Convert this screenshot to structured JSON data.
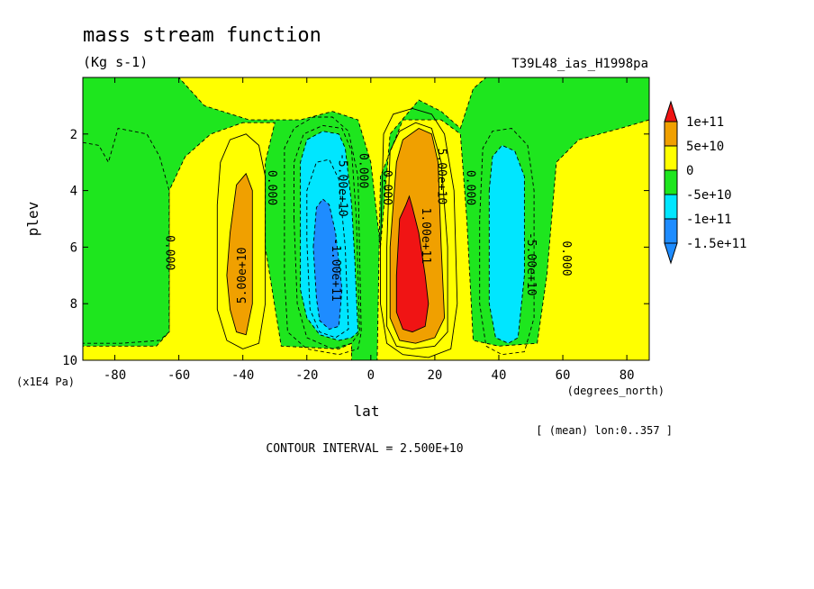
{
  "chart_data": {
    "type": "heatmap",
    "title": "mass stream function",
    "units": "(Kg s-1)",
    "experiment": "T39L48_ias_H1998pa",
    "xlabel": "lat",
    "ylabel": "plev",
    "x_unit": "(degrees_north)",
    "y_unit": "(x1E4 Pa)",
    "x_range": [
      -90,
      87
    ],
    "y_range": [
      10,
      0
    ],
    "x_ticks": [
      -80,
      -60,
      -40,
      -20,
      0,
      20,
      40,
      60,
      80
    ],
    "x_tick_labels": [
      "-80",
      "-60",
      "-40",
      "-20",
      "0",
      "20",
      "40",
      "60",
      "80"
    ],
    "y_ticks": [
      2,
      4,
      6,
      8,
      10
    ],
    "y_tick_labels": [
      "2",
      "4",
      "6",
      "8",
      "10"
    ],
    "mean_note": "[ (mean) lon:0..357 ]",
    "contour_interval": "CONTOUR INTERVAL = 2.500E+10",
    "colorbar": {
      "bands": [
        {
          "label": "",
          "color": "#1e8cff"
        },
        {
          "label": "-1.5e+11",
          "color": "#1e8cff"
        },
        {
          "label": "-1e+11",
          "color": "#00e6ff"
        },
        {
          "label": "-5e+10",
          "color": "#1ee61e"
        },
        {
          "label": "0",
          "color": "#ffff00"
        },
        {
          "label": "5e+10",
          "color": "#f0a000"
        },
        {
          "label": "1e+11",
          "color": "#f01414"
        }
      ],
      "tick_labels": [
        "1e+11",
        "5e+10",
        "0",
        "-5e+10",
        "-1e+11",
        "-1.5e+11"
      ]
    },
    "contour_labels": [
      {
        "text": "0.000",
        "lat": -63,
        "plev": 6.2,
        "rotate": 90
      },
      {
        "text": "0.000",
        "lat": -31,
        "plev": 3.9,
        "rotate": 90
      },
      {
        "text": "0.000",
        "lat": -2.5,
        "plev": 3.3,
        "rotate": 90
      },
      {
        "text": "0.000",
        "lat": 5,
        "plev": 3.9,
        "rotate": 90
      },
      {
        "text": "0.000",
        "lat": 31,
        "plev": 3.9,
        "rotate": 90
      },
      {
        "text": "0.000",
        "lat": 61,
        "plev": 6.4,
        "rotate": 90
      },
      {
        "text": "5.00e+10",
        "lat": -40,
        "plev": 7.0,
        "rotate": -90
      },
      {
        "text": "-5.00e+10",
        "lat": -9,
        "plev": 3.8,
        "rotate": 90
      },
      {
        "text": "-1.00e+11",
        "lat": -11,
        "plev": 6.8,
        "rotate": 90
      },
      {
        "text": "5.00e+10",
        "lat": 22,
        "plev": 3.5,
        "rotate": 90
      },
      {
        "text": "1.00e+11",
        "lat": 17,
        "plev": 5.6,
        "rotate": 90
      },
      {
        "text": "-5.00e+10",
        "lat": 50,
        "plev": 6.6,
        "rotate": 90
      }
    ],
    "regions": [
      {
        "level": "neg1",
        "color": "#1ee61e",
        "pts": [
          [
            -90,
            0
          ],
          [
            -60,
            0
          ],
          [
            -52,
            1.0
          ],
          [
            -38,
            1.5
          ],
          [
            -22,
            1.5
          ],
          [
            -12,
            1.2
          ],
          [
            -4,
            1.5
          ],
          [
            0,
            3.0
          ],
          [
            3,
            6.0
          ],
          [
            6,
            2.0
          ],
          [
            15,
            0.8
          ],
          [
            22,
            1.2
          ],
          [
            28,
            1.8
          ],
          [
            32,
            0.4
          ],
          [
            36,
            0
          ],
          [
            87,
            0
          ],
          [
            87,
            1.5
          ],
          [
            78,
            1.8
          ],
          [
            65,
            2.2
          ],
          [
            58,
            3.0
          ],
          [
            55,
            7.0
          ],
          [
            52,
            9.4
          ],
          [
            40,
            9.5
          ],
          [
            32,
            9.3
          ],
          [
            30,
            5.0
          ],
          [
            28,
            2.0
          ],
          [
            22,
            1.5
          ],
          [
            10,
            1.5
          ],
          [
            3,
            3.5
          ],
          [
            2,
            10
          ],
          [
            -6,
            10
          ],
          [
            -6,
            9.4
          ],
          [
            -10,
            9.6
          ],
          [
            -28,
            9.5
          ],
          [
            -33,
            6.0
          ],
          [
            -33,
            3.0
          ],
          [
            -30,
            1.6
          ],
          [
            -40,
            1.6
          ],
          [
            -50,
            2.0
          ],
          [
            -58,
            2.8
          ],
          [
            -63,
            4.0
          ],
          [
            -63,
            9.0
          ],
          [
            -67,
            9.5
          ],
          [
            -90,
            9.5
          ]
        ]
      },
      {
        "level": "neg1",
        "color": "#1ee61e",
        "pts": [
          [
            -90,
            2.3
          ],
          [
            -85,
            2.4
          ],
          [
            -82,
            3.0
          ],
          [
            -79,
            1.8
          ],
          [
            -70,
            2.0
          ],
          [
            -66,
            2.8
          ],
          [
            -63,
            4.0
          ],
          [
            -63,
            9.0
          ],
          [
            -66,
            9.3
          ],
          [
            -78,
            9.4
          ],
          [
            -90,
            9.4
          ]
        ]
      },
      {
        "level": "neg2",
        "color": "#00e6ff",
        "pts": [
          [
            -22,
            5.5
          ],
          [
            -22,
            3.0
          ],
          [
            -20,
            2.2
          ],
          [
            -15,
            1.9
          ],
          [
            -10,
            2.0
          ],
          [
            -8,
            2.5
          ],
          [
            -6,
            4.5
          ],
          [
            -5,
            6.5
          ],
          [
            -4,
            9.0
          ],
          [
            -6,
            9.2
          ],
          [
            -10,
            9.3
          ],
          [
            -16,
            9.1
          ],
          [
            -20,
            8.5
          ],
          [
            -22,
            7.5
          ]
        ]
      },
      {
        "level": "neg2",
        "color": "#00e6ff",
        "pts": [
          [
            37,
            4.0
          ],
          [
            38,
            2.8
          ],
          [
            41,
            2.4
          ],
          [
            45,
            2.6
          ],
          [
            48,
            3.5
          ],
          [
            48,
            7.0
          ],
          [
            46,
            9.2
          ],
          [
            43,
            9.4
          ],
          [
            39,
            9.2
          ],
          [
            37,
            8.0
          ]
        ]
      },
      {
        "level": "neg3",
        "color": "#1e8cff",
        "pts": [
          [
            -18,
            6.0
          ],
          [
            -17,
            4.6
          ],
          [
            -15,
            4.3
          ],
          [
            -13,
            4.5
          ],
          [
            -11,
            5.5
          ],
          [
            -9,
            7.5
          ],
          [
            -10,
            8.8
          ],
          [
            -13,
            8.9
          ],
          [
            -16,
            8.6
          ],
          [
            -17,
            7.8
          ]
        ]
      },
      {
        "level": "pos1",
        "color": "#f0a000",
        "pts": [
          [
            -45,
            7.0
          ],
          [
            -44,
            5.5
          ],
          [
            -42,
            3.8
          ],
          [
            -39,
            3.4
          ],
          [
            -37,
            4.0
          ],
          [
            -37,
            8.0
          ],
          [
            -39,
            9.1
          ],
          [
            -42,
            9.0
          ],
          [
            -44,
            8.2
          ]
        ]
      },
      {
        "level": "pos1",
        "color": "#f0a000",
        "pts": [
          [
            6,
            6.0
          ],
          [
            8,
            3.0
          ],
          [
            10,
            2.2
          ],
          [
            15,
            1.8
          ],
          [
            19,
            2.0
          ],
          [
            21,
            3.0
          ],
          [
            22,
            6.0
          ],
          [
            23,
            8.5
          ],
          [
            20,
            9.2
          ],
          [
            14,
            9.4
          ],
          [
            9,
            9.3
          ],
          [
            6,
            8.5
          ]
        ]
      },
      {
        "level": "pos2",
        "color": "#f01414",
        "pts": [
          [
            8,
            7.0
          ],
          [
            9,
            5.0
          ],
          [
            11,
            4.5
          ],
          [
            12,
            4.2
          ],
          [
            13,
            4.6
          ],
          [
            15,
            5.5
          ],
          [
            17,
            7.0
          ],
          [
            18,
            8.0
          ],
          [
            17,
            8.8
          ],
          [
            13,
            9.0
          ],
          [
            10,
            8.9
          ],
          [
            8,
            8.3
          ]
        ]
      }
    ],
    "contour_lines": [
      {
        "style": "solid",
        "pts": [
          [
            -48,
            4.5
          ],
          [
            -47,
            3.0
          ],
          [
            -44,
            2.2
          ],
          [
            -39,
            2.0
          ],
          [
            -35,
            2.4
          ],
          [
            -33,
            3.5
          ],
          [
            -33,
            8.0
          ],
          [
            -35,
            9.4
          ],
          [
            -40,
            9.6
          ],
          [
            -45,
            9.3
          ],
          [
            -48,
            8.2
          ],
          [
            -48,
            4.5
          ]
        ]
      },
      {
        "style": "dashed",
        "pts": [
          [
            -27,
            5.0
          ],
          [
            -27,
            2.5
          ],
          [
            -24,
            1.8
          ],
          [
            -18,
            1.4
          ],
          [
            -12,
            1.4
          ],
          [
            -7,
            1.9
          ],
          [
            -4,
            3.5
          ],
          [
            -3,
            9.0
          ],
          [
            -4,
            9.6
          ],
          [
            -10,
            9.8
          ],
          [
            -20,
            9.6
          ],
          [
            -26,
            9.0
          ],
          [
            -27,
            7.0
          ],
          [
            -27,
            5.0
          ]
        ]
      },
      {
        "style": "dashed",
        "pts": [
          [
            -24,
            5.0
          ],
          [
            -24,
            3.0
          ],
          [
            -21,
            2.0
          ],
          [
            -15,
            1.7
          ],
          [
            -9,
            1.8
          ],
          [
            -6,
            2.6
          ],
          [
            -4.5,
            5.0
          ],
          [
            -3.5,
            9.0
          ],
          [
            -6,
            9.4
          ],
          [
            -12,
            9.6
          ],
          [
            -20,
            9.2
          ],
          [
            -23,
            8.0
          ],
          [
            -24,
            5.0
          ]
        ]
      },
      {
        "style": "dashed",
        "pts": [
          [
            -20,
            5.8
          ],
          [
            -20,
            4.0
          ],
          [
            -17,
            3.0
          ],
          [
            -13,
            2.9
          ],
          [
            -10,
            3.6
          ],
          [
            -8,
            6.0
          ],
          [
            -7,
            8.9
          ],
          [
            -11,
            9.2
          ],
          [
            -16,
            9.0
          ],
          [
            -19,
            8.2
          ],
          [
            -20,
            5.8
          ]
        ]
      },
      {
        "style": "solid",
        "pts": [
          [
            3,
            6.0
          ],
          [
            4,
            2.0
          ],
          [
            7,
            1.3
          ],
          [
            13,
            1.1
          ],
          [
            19,
            1.3
          ],
          [
            23,
            2.0
          ],
          [
            26,
            4.0
          ],
          [
            27,
            8.0
          ],
          [
            25,
            9.6
          ],
          [
            18,
            9.9
          ],
          [
            10,
            9.8
          ],
          [
            5,
            9.4
          ],
          [
            3,
            8.0
          ],
          [
            3,
            6.0
          ]
        ]
      },
      {
        "style": "solid",
        "pts": [
          [
            5,
            6.0
          ],
          [
            6,
            2.6
          ],
          [
            9,
            1.9
          ],
          [
            14,
            1.6
          ],
          [
            19,
            1.8
          ],
          [
            22,
            3.0
          ],
          [
            24,
            6.0
          ],
          [
            24,
            9.0
          ],
          [
            20,
            9.5
          ],
          [
            13,
            9.6
          ],
          [
            8,
            9.5
          ],
          [
            5,
            8.8
          ],
          [
            5,
            6.0
          ]
        ]
      },
      {
        "style": "dashed",
        "pts": [
          [
            34,
            5.0
          ],
          [
            35,
            2.5
          ],
          [
            38,
            1.9
          ],
          [
            44,
            1.8
          ],
          [
            49,
            2.4
          ],
          [
            51,
            4.0
          ],
          [
            51,
            8.5
          ],
          [
            48,
            9.7
          ],
          [
            41,
            9.8
          ],
          [
            36,
            9.5
          ],
          [
            34,
            8.0
          ],
          [
            34,
            5.0
          ]
        ]
      }
    ]
  }
}
